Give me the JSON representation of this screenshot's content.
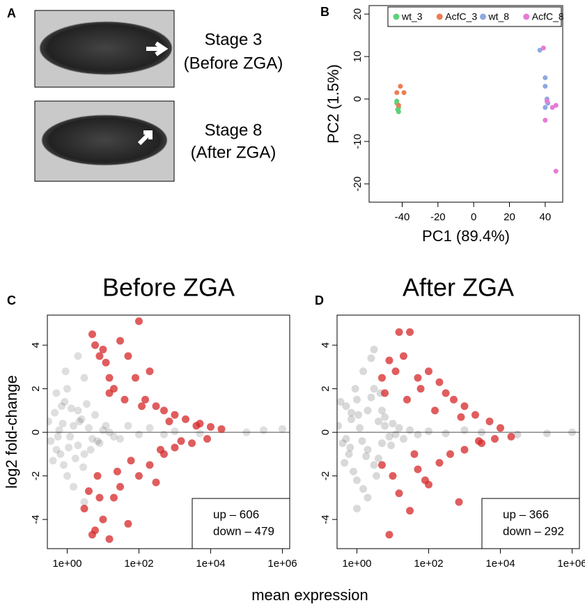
{
  "panel_a": {
    "label": "A",
    "captions": [
      [
        "Stage 3",
        "(Before ZGA)"
      ],
      [
        "Stage 8",
        "(After ZGA)"
      ]
    ]
  },
  "shared_x_label": "mean expression",
  "chart_data": [
    {
      "type": "scatter",
      "panel": "B",
      "x_label": "PC1 (89.4%)",
      "y_label": "PC2 (1.5%)",
      "xlim": [
        -58.5,
        49.8
      ],
      "ylim": [
        -24.3,
        22
      ],
      "xticks": [
        -40,
        -20,
        0,
        20,
        40
      ],
      "yticks": [
        -20,
        -10,
        0,
        10,
        20
      ],
      "legend": "top",
      "series": [
        {
          "name": "wt_3",
          "color": "#5fd07a",
          "x": [
            -43,
            -42,
            -42,
            -43,
            -42.5
          ],
          "values": [
            -1,
            -2,
            -3,
            -0.5,
            -2.5
          ]
        },
        {
          "name": "AcfC_3",
          "color": "#ee7c55",
          "x": [
            -41,
            -39,
            -43,
            -42
          ],
          "values": [
            3,
            1.5,
            1.5,
            -1.5
          ]
        },
        {
          "name": "wt_8",
          "color": "#8fa8e0",
          "x": [
            37,
            40,
            40,
            41,
            40,
            41.5
          ],
          "values": [
            11.5,
            5,
            3,
            0,
            -2,
            -1
          ]
        },
        {
          "name": "AcfC_8",
          "color": "#e67ad8",
          "x": [
            39,
            41,
            44,
            46,
            40,
            46
          ],
          "values": [
            12,
            -0.5,
            -2,
            -1.5,
            -5,
            -17
          ]
        }
      ]
    },
    {
      "type": "ma",
      "panel": "C",
      "title": "Before ZGA",
      "y_label": "log2 fold-change",
      "xscale": "log",
      "xlim": [
        0.28,
        1600000
      ],
      "ylim": [
        -5.34,
        5.38
      ],
      "xticks": [
        {
          "value": 1,
          "label": "1e+00"
        },
        {
          "value": 100,
          "label": "1e+02"
        },
        {
          "value": 10000,
          "label": "1e+04"
        },
        {
          "value": 1000000,
          "label": "1e+06"
        }
      ],
      "yticks": [
        -4,
        -2,
        0,
        2,
        4
      ],
      "reference_line": 0,
      "annotations": [
        "up – 606",
        "down – 479"
      ],
      "series": [
        {
          "color": "#000000",
          "alpha": 0.13,
          "x": [
            0.3,
            0.5,
            0.7,
            0.8,
            1,
            1,
            1.5,
            2,
            2,
            3,
            3,
            4,
            5,
            0.5,
            0.4,
            0.6,
            1.2,
            2.5,
            6,
            8,
            10,
            20,
            50,
            100,
            200,
            500,
            1000,
            5000,
            100000,
            300000,
            1000000,
            2,
            1.5,
            0.9,
            15,
            30,
            3,
            0.35,
            0.45,
            0.55,
            0.65,
            0.75,
            0.85,
            1.1,
            1.3,
            1.7,
            2.2,
            2.8,
            3.5,
            4.5,
            7,
            12
          ],
          "values": [
            0.5,
            -0.8,
            1.2,
            -1.5,
            2,
            -2,
            0.3,
            -0.6,
            1,
            2.5,
            -1,
            0.2,
            -0.3,
            1.8,
            -1.3,
            0.1,
            -0.2,
            0.6,
            0.8,
            -0.5,
            0.1,
            -0.2,
            0.3,
            -0.1,
            0.2,
            -0.1,
            0.05,
            -0.05,
            0,
            0.1,
            0.15,
            3.5,
            -2.5,
            2.8,
            0,
            -0.3,
            -3.2,
            -0.4,
            0.9,
            -0.2,
            -1,
            0.4,
            1.4,
            -0.7,
            1.1,
            -1.2,
            0.5,
            -1.6,
            1.3,
            -0.8,
            -0.4,
            0.3
          ]
        },
        {
          "color": "#d62728",
          "alpha": 0.75,
          "x": [
            5,
            6,
            8,
            10,
            12,
            15,
            20,
            30,
            50,
            100,
            80,
            200,
            150,
            300,
            500,
            1000,
            2000,
            5000,
            10000,
            20000,
            7,
            8,
            10,
            5,
            6,
            15,
            20,
            30,
            50,
            100,
            200,
            300,
            500,
            1000,
            3000,
            8000,
            3,
            4,
            40,
            60,
            120,
            700,
            1500,
            4000,
            400,
            25,
            15
          ],
          "values": [
            4.5,
            4,
            3.5,
            3.8,
            3.2,
            2.5,
            2,
            4.2,
            3.5,
            5.1,
            2.5,
            2.8,
            1.5,
            1.2,
            1,
            0.8,
            0.6,
            0.4,
            0.25,
            0.15,
            -2,
            -3,
            -4,
            -4.7,
            -4.5,
            -4.9,
            -3,
            -2.5,
            -4.2,
            -2,
            -1.5,
            -2.3,
            -1,
            -0.7,
            -0.5,
            -0.3,
            -3.5,
            -2.7,
            1.5,
            -1.3,
            1.2,
            0.5,
            -0.4,
            0.3,
            -0.8,
            -1.8,
            1.8
          ]
        }
      ]
    },
    {
      "type": "ma",
      "panel": "D",
      "title": "After ZGA",
      "xscale": "log",
      "xlim": [
        0.28,
        1600000
      ],
      "ylim": [
        -5.34,
        5.38
      ],
      "xticks": [
        {
          "value": 1,
          "label": "1e+00"
        },
        {
          "value": 100,
          "label": "1e+02"
        },
        {
          "value": 10000,
          "label": "1e+04"
        },
        {
          "value": 1000000,
          "label": "1e+06"
        }
      ],
      "yticks": [
        -4,
        -2,
        0,
        2,
        4
      ],
      "reference_line": 0,
      "annotations": [
        "up – 366",
        "down – 292"
      ],
      "series": [
        {
          "color": "#000000",
          "alpha": 0.15,
          "x": [
            0.3,
            0.4,
            0.5,
            0.6,
            0.7,
            0.8,
            0.9,
            1,
            1,
            1.2,
            1.5,
            1.5,
            2,
            2,
            2.5,
            3,
            3,
            4,
            4,
            5,
            5,
            6,
            8,
            10,
            12,
            15,
            20,
            30,
            50,
            100,
            300,
            1000,
            3000,
            30000,
            200000,
            1000000,
            1,
            2,
            3,
            0.5,
            0.7,
            1.8,
            2.5,
            3.5,
            6,
            9,
            0.35,
            0.45,
            0.65,
            1.1,
            1.4,
            4.5
          ],
          "values": [
            0.3,
            -0.5,
            1.2,
            -1,
            0.6,
            -1.8,
            2,
            1.5,
            -2.2,
            0.2,
            2.8,
            -2.6,
            1,
            -0.8,
            3.4,
            -1.5,
            2,
            0.5,
            -1.2,
            1,
            -0.5,
            0.3,
            -0.2,
            0.4,
            -0.1,
            0.2,
            -0.3,
            0.1,
            -0.1,
            0.05,
            -0.05,
            0.1,
            0,
            -0.1,
            -0.05,
            0,
            -3.5,
            -3,
            3.8,
            -0.3,
            0.9,
            -1.1,
            1.6,
            -2,
            0.7,
            -0.6,
            1.4,
            -1.4,
            -0.7,
            0.8,
            -0.4,
            1.8
          ]
        },
        {
          "color": "#d62728",
          "alpha": 0.75,
          "x": [
            15,
            30,
            20,
            8,
            12,
            50,
            100,
            60,
            200,
            300,
            500,
            1000,
            2000,
            5000,
            10000,
            20000,
            8,
            30,
            100,
            700,
            15,
            10,
            50,
            200,
            400,
            1000,
            3000,
            7000,
            5,
            6,
            40,
            150,
            800,
            2500,
            25,
            80,
            5
          ],
          "values": [
            4.6,
            4.6,
            3.5,
            3.3,
            2.8,
            2.5,
            2.8,
            2,
            2.3,
            1.8,
            1.5,
            1.2,
            0.8,
            0.5,
            0.2,
            -0.2,
            -4.7,
            -3.6,
            -2.4,
            -3.2,
            -2.8,
            -2,
            -1.7,
            -1.4,
            -1,
            -0.8,
            -0.5,
            -0.3,
            -1.5,
            1.8,
            -1,
            1,
            0.7,
            -0.4,
            1.5,
            -2.2,
            2.5
          ]
        }
      ]
    }
  ]
}
